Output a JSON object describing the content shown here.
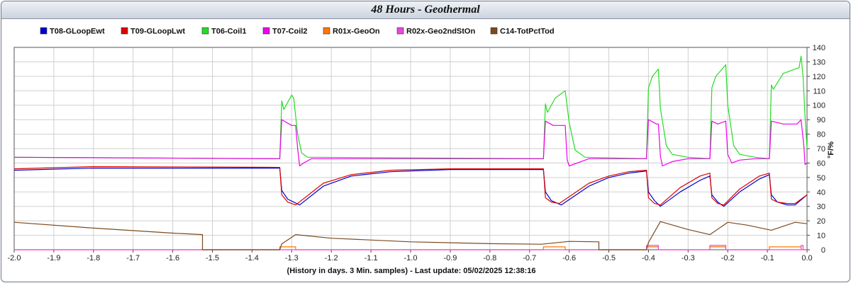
{
  "chart_data": {
    "type": "line",
    "title": "48 Hours - Geothermal",
    "xlabel": "(History in days. 3 Min. samples) - Last update: 05/02/2025 12:38:16",
    "ylabel": "°F/%",
    "xlim": [
      -2.0,
      0.0
    ],
    "ylim": [
      0,
      140
    ],
    "grid": true,
    "legend_position": "top",
    "x_ticks": [
      "-2.0",
      "-1.9",
      "-1.8",
      "-1.7",
      "-1.6",
      "-1.5",
      "-1.4",
      "-1.3",
      "-1.2",
      "-1.1",
      "-1.0",
      "-0.9",
      "-0.8",
      "-0.7",
      "-0.6",
      "-0.5",
      "-0.4",
      "-0.3",
      "-0.2",
      "-0.1",
      "0.0"
    ],
    "y_ticks": [
      "0",
      "10",
      "20",
      "30",
      "40",
      "50",
      "60",
      "70",
      "80",
      "90",
      "100",
      "110",
      "120",
      "130",
      "140"
    ],
    "series": [
      {
        "name": "T08-GLoopEwt",
        "color": "#0000cc",
        "points": [
          [
            -2.0,
            55
          ],
          [
            -1.8,
            56.5
          ],
          [
            -1.5,
            56.5
          ],
          [
            -1.33,
            56.5
          ],
          [
            -1.325,
            41
          ],
          [
            -1.31,
            35
          ],
          [
            -1.28,
            31
          ],
          [
            -1.22,
            44
          ],
          [
            -1.15,
            51
          ],
          [
            -1.05,
            54
          ],
          [
            -0.9,
            55.5
          ],
          [
            -0.665,
            55.5
          ],
          [
            -0.66,
            40
          ],
          [
            -0.645,
            34
          ],
          [
            -0.62,
            31
          ],
          [
            -0.55,
            44
          ],
          [
            -0.5,
            50
          ],
          [
            -0.45,
            53
          ],
          [
            -0.405,
            54.5
          ],
          [
            -0.4,
            40
          ],
          [
            -0.385,
            34
          ],
          [
            -0.37,
            30
          ],
          [
            -0.32,
            40
          ],
          [
            -0.27,
            48
          ],
          [
            -0.245,
            51
          ],
          [
            -0.24,
            38
          ],
          [
            -0.225,
            33
          ],
          [
            -0.21,
            30
          ],
          [
            -0.17,
            40
          ],
          [
            -0.12,
            49
          ],
          [
            -0.095,
            52
          ],
          [
            -0.09,
            38
          ],
          [
            -0.075,
            33
          ],
          [
            -0.05,
            31
          ],
          [
            -0.03,
            31
          ],
          [
            0.0,
            38
          ]
        ]
      },
      {
        "name": "T09-GLoopLwt",
        "color": "#dd0000",
        "points": [
          [
            -2.0,
            56
          ],
          [
            -1.8,
            57.5
          ],
          [
            -1.5,
            57.2
          ],
          [
            -1.33,
            57
          ],
          [
            -1.325,
            38
          ],
          [
            -1.31,
            33
          ],
          [
            -1.29,
            31
          ],
          [
            -1.22,
            46
          ],
          [
            -1.15,
            52
          ],
          [
            -1.05,
            55
          ],
          [
            -0.9,
            56
          ],
          [
            -0.665,
            56
          ],
          [
            -0.66,
            36
          ],
          [
            -0.645,
            33
          ],
          [
            -0.625,
            32
          ],
          [
            -0.55,
            46
          ],
          [
            -0.5,
            51
          ],
          [
            -0.45,
            54
          ],
          [
            -0.405,
            55
          ],
          [
            -0.4,
            36
          ],
          [
            -0.385,
            32
          ],
          [
            -0.37,
            31
          ],
          [
            -0.32,
            43
          ],
          [
            -0.27,
            51
          ],
          [
            -0.245,
            53
          ],
          [
            -0.24,
            36
          ],
          [
            -0.225,
            32
          ],
          [
            -0.21,
            31
          ],
          [
            -0.17,
            42
          ],
          [
            -0.12,
            51
          ],
          [
            -0.095,
            53
          ],
          [
            -0.09,
            35
          ],
          [
            -0.075,
            33
          ],
          [
            -0.05,
            32
          ],
          [
            -0.03,
            32
          ],
          [
            0.0,
            38
          ]
        ]
      },
      {
        "name": "T06-Coil1",
        "color": "#22dd22",
        "points": [
          [
            -2.0,
            64
          ],
          [
            -1.33,
            63
          ],
          [
            -1.325,
            103
          ],
          [
            -1.32,
            97
          ],
          [
            -1.3,
            107
          ],
          [
            -1.295,
            105
          ],
          [
            -1.285,
            80
          ],
          [
            -1.275,
            67
          ],
          [
            -1.26,
            64
          ],
          [
            -1.24,
            64
          ],
          [
            -0.665,
            63
          ],
          [
            -0.66,
            101
          ],
          [
            -0.655,
            95
          ],
          [
            -0.635,
            105
          ],
          [
            -0.61,
            110
          ],
          [
            -0.6,
            88
          ],
          [
            -0.585,
            69
          ],
          [
            -0.56,
            64
          ],
          [
            -0.405,
            63
          ],
          [
            -0.4,
            112
          ],
          [
            -0.39,
            120
          ],
          [
            -0.375,
            125
          ],
          [
            -0.37,
            98
          ],
          [
            -0.355,
            72
          ],
          [
            -0.34,
            66
          ],
          [
            -0.3,
            64
          ],
          [
            -0.245,
            63
          ],
          [
            -0.24,
            112
          ],
          [
            -0.23,
            120
          ],
          [
            -0.205,
            128
          ],
          [
            -0.2,
            100
          ],
          [
            -0.185,
            72
          ],
          [
            -0.17,
            66
          ],
          [
            -0.13,
            64
          ],
          [
            -0.095,
            63
          ],
          [
            -0.09,
            114
          ],
          [
            -0.085,
            111
          ],
          [
            -0.06,
            122
          ],
          [
            -0.02,
            126
          ],
          [
            -0.015,
            134
          ],
          [
            -0.01,
            120
          ],
          [
            -0.005,
            92
          ],
          [
            0.0,
            70
          ]
        ]
      },
      {
        "name": "T07-Coil2",
        "color": "#ee00ee",
        "points": [
          [
            -2.0,
            64
          ],
          [
            -1.33,
            63
          ],
          [
            -1.325,
            90
          ],
          [
            -1.3,
            86
          ],
          [
            -1.29,
            86
          ],
          [
            -1.285,
            70
          ],
          [
            -1.28,
            58
          ],
          [
            -1.27,
            60
          ],
          [
            -1.25,
            63
          ],
          [
            -0.665,
            63
          ],
          [
            -0.66,
            89
          ],
          [
            -0.64,
            86
          ],
          [
            -0.61,
            86
          ],
          [
            -0.605,
            62
          ],
          [
            -0.6,
            58
          ],
          [
            -0.57,
            61
          ],
          [
            -0.55,
            63
          ],
          [
            -0.405,
            63
          ],
          [
            -0.4,
            90
          ],
          [
            -0.38,
            87
          ],
          [
            -0.375,
            87
          ],
          [
            -0.37,
            65
          ],
          [
            -0.365,
            58
          ],
          [
            -0.34,
            61
          ],
          [
            -0.3,
            63
          ],
          [
            -0.245,
            63
          ],
          [
            -0.24,
            89
          ],
          [
            -0.225,
            87
          ],
          [
            -0.205,
            89
          ],
          [
            -0.2,
            66
          ],
          [
            -0.19,
            60
          ],
          [
            -0.17,
            62
          ],
          [
            -0.13,
            63
          ],
          [
            -0.095,
            63
          ],
          [
            -0.09,
            89
          ],
          [
            -0.06,
            87
          ],
          [
            -0.025,
            87
          ],
          [
            -0.015,
            90
          ],
          [
            -0.008,
            72
          ],
          [
            -0.005,
            59
          ],
          [
            0.0,
            60
          ]
        ]
      },
      {
        "name": "R01x-GeoOn",
        "color": "#ff7700",
        "points": [
          [
            -2.0,
            0
          ],
          [
            -1.33,
            0
          ],
          [
            -1.33,
            2
          ],
          [
            -1.29,
            2
          ],
          [
            -1.29,
            0
          ],
          [
            -0.665,
            0
          ],
          [
            -0.665,
            2
          ],
          [
            -0.61,
            2
          ],
          [
            -0.61,
            0
          ],
          [
            -0.405,
            0
          ],
          [
            -0.405,
            2
          ],
          [
            -0.375,
            2
          ],
          [
            -0.375,
            0
          ],
          [
            -0.245,
            0
          ],
          [
            -0.245,
            2
          ],
          [
            -0.205,
            2
          ],
          [
            -0.205,
            0
          ],
          [
            -0.095,
            0
          ],
          [
            -0.095,
            2
          ],
          [
            -0.015,
            2
          ],
          [
            -0.015,
            0
          ],
          [
            0.0,
            0
          ]
        ]
      },
      {
        "name": "R02x-Geo2ndStOn",
        "color": "#ee44dd",
        "points": [
          [
            -2.0,
            0
          ],
          [
            -0.405,
            0
          ],
          [
            -0.405,
            3
          ],
          [
            -0.375,
            3
          ],
          [
            -0.375,
            0
          ],
          [
            -0.245,
            0
          ],
          [
            -0.245,
            3
          ],
          [
            -0.205,
            3
          ],
          [
            -0.205,
            0
          ],
          [
            -0.015,
            0
          ],
          [
            -0.015,
            3
          ],
          [
            -0.01,
            3
          ],
          [
            -0.01,
            0
          ],
          [
            0.0,
            0
          ]
        ]
      },
      {
        "name": "C14-TotPctTod",
        "color": "#7a4a1e",
        "points": [
          [
            -2.0,
            19
          ],
          [
            -1.8,
            15
          ],
          [
            -1.6,
            11.5
          ],
          [
            -1.525,
            10.5
          ],
          [
            -1.525,
            0
          ],
          [
            -1.33,
            0
          ],
          [
            -1.325,
            4
          ],
          [
            -1.29,
            10.5
          ],
          [
            -1.2,
            8
          ],
          [
            -1.0,
            5.5
          ],
          [
            -0.8,
            4.2
          ],
          [
            -0.67,
            3.8
          ],
          [
            -0.6,
            5.8
          ],
          [
            -0.525,
            5.5
          ],
          [
            -0.525,
            0
          ],
          [
            -0.405,
            0
          ],
          [
            -0.4,
            5
          ],
          [
            -0.37,
            19.5
          ],
          [
            -0.3,
            14
          ],
          [
            -0.245,
            10.5
          ],
          [
            -0.2,
            19
          ],
          [
            -0.15,
            17
          ],
          [
            -0.09,
            13.5
          ],
          [
            -0.03,
            19
          ],
          [
            0.0,
            18
          ]
        ]
      }
    ]
  }
}
